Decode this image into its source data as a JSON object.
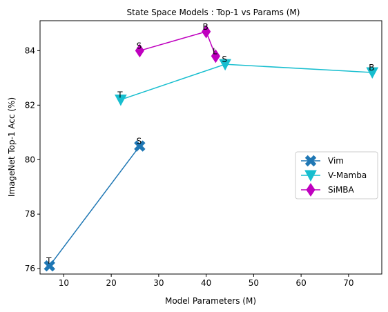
{
  "chart_data": {
    "type": "line",
    "title": "State Space  Models : Top-1 vs Params (M)",
    "xlabel": "Model Parameters (M)",
    "ylabel": "ImageNet Top-1 Acc (%)",
    "xlim": [
      5,
      77
    ],
    "ylim": [
      75.8,
      85.1
    ],
    "xticks": [
      10,
      20,
      30,
      40,
      50,
      60,
      70
    ],
    "yticks": [
      76,
      78,
      80,
      82,
      84
    ],
    "grid": false,
    "legend_position": "center-right",
    "series": [
      {
        "name": "Vim",
        "color": "#1f77b4",
        "marker": "X",
        "points": [
          {
            "x": 7,
            "y": 76.1,
            "label": "T"
          },
          {
            "x": 26,
            "y": 80.5,
            "label": "S"
          }
        ]
      },
      {
        "name": "V-Mamba",
        "color": "#17becf",
        "marker": "triangle-down",
        "points": [
          {
            "x": 22,
            "y": 82.2,
            "label": "T"
          },
          {
            "x": 44,
            "y": 83.5,
            "label": "S"
          },
          {
            "x": 75,
            "y": 83.2,
            "label": "B"
          }
        ]
      },
      {
        "name": "SiMBA",
        "color": "#bf00bf",
        "marker": "diamond",
        "points": [
          {
            "x": 26,
            "y": 84.0,
            "label": "S"
          },
          {
            "x": 40,
            "y": 84.7,
            "label": "B"
          },
          {
            "x": 42,
            "y": 83.8,
            "label": "L"
          }
        ]
      }
    ]
  }
}
